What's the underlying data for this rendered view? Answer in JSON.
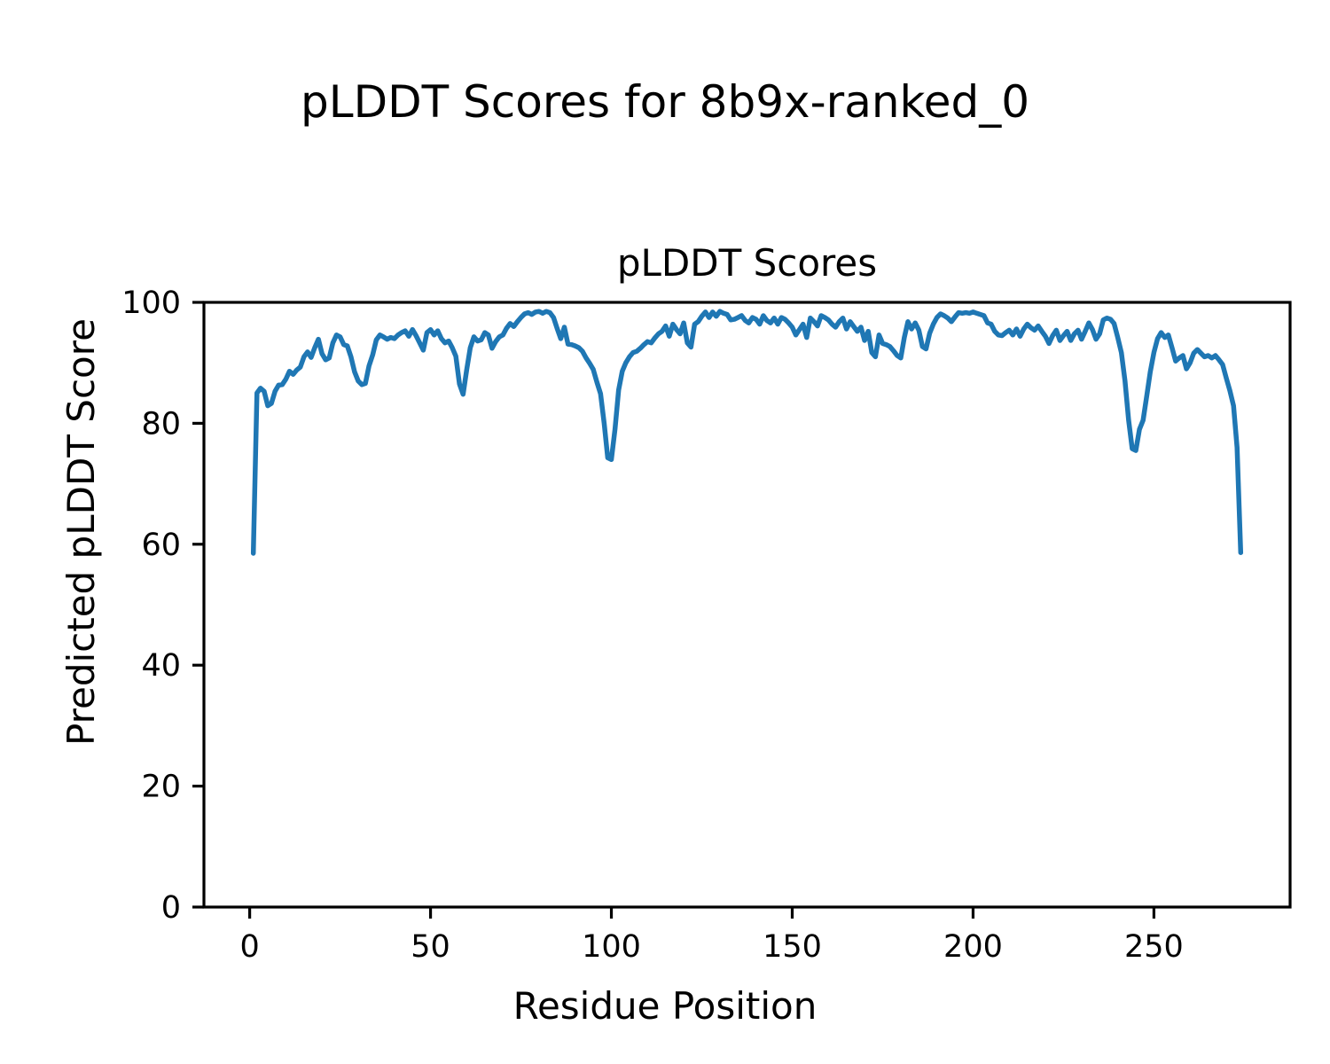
{
  "figure": {
    "title": "pLDDT Scores for 8b9x-ranked_0"
  },
  "chart_data": {
    "type": "line",
    "title": "pLDDT Scores",
    "xlabel": "Residue Position",
    "ylabel": "Predicted pLDDT Score",
    "x_tick_labels": [
      0,
      50,
      100,
      150,
      200,
      250
    ],
    "y_tick_labels": [
      0,
      20,
      40,
      60,
      80,
      100
    ],
    "xlim": [
      -12.65,
      287.65
    ],
    "ylim": [
      0,
      100
    ],
    "grid": false,
    "legend": "none",
    "line_color": "#1f77b4",
    "series": [
      {
        "name": "pLDDT",
        "x_start": 1,
        "x_step": 1,
        "values": [
          58.5,
          85.0,
          85.8,
          85.3,
          82.9,
          83.3,
          85.3,
          86.3,
          86.4,
          87.3,
          88.6,
          88.1,
          88.8,
          89.3,
          91.0,
          91.8,
          90.9,
          92.5,
          93.9,
          91.5,
          90.5,
          90.8,
          93.3,
          94.6,
          94.3,
          93.0,
          92.8,
          91.0,
          88.5,
          87.0,
          86.4,
          86.6,
          89.5,
          91.3,
          93.8,
          94.6,
          94.3,
          93.9,
          94.2,
          94.0,
          94.6,
          95.0,
          95.3,
          94.4,
          95.5,
          94.5,
          93.3,
          92.1,
          95.0,
          95.5,
          94.6,
          95.3,
          94.0,
          93.3,
          93.6,
          92.5,
          91.1,
          86.5,
          84.8,
          88.9,
          92.5,
          94.3,
          93.6,
          93.8,
          95.0,
          94.6,
          92.4,
          93.5,
          94.3,
          94.6,
          95.7,
          96.5,
          96.0,
          96.8,
          97.5,
          98.1,
          98.3,
          98.0,
          98.4,
          98.5,
          98.2,
          98.5,
          98.3,
          97.5,
          95.7,
          94.0,
          95.9,
          93.1,
          93.0,
          92.8,
          92.5,
          91.9,
          90.8,
          89.9,
          88.9,
          86.8,
          84.9,
          80.0,
          74.3,
          74.0,
          79.0,
          85.5,
          88.6,
          90.0,
          91.0,
          91.7,
          91.9,
          92.4,
          93.0,
          93.5,
          93.3,
          94.1,
          94.8,
          95.2,
          96.1,
          94.4,
          96.4,
          95.5,
          94.8,
          96.6,
          93.3,
          92.6,
          96.4,
          96.8,
          97.7,
          98.4,
          97.5,
          98.4,
          97.7,
          98.5,
          98.2,
          98.0,
          97.1,
          97.2,
          97.5,
          97.8,
          97.0,
          96.6,
          97.5,
          97.2,
          96.4,
          97.8,
          97.0,
          96.6,
          97.4,
          96.4,
          97.5,
          97.2,
          96.6,
          95.9,
          94.6,
          95.5,
          96.4,
          94.2,
          97.4,
          96.8,
          96.1,
          97.8,
          97.5,
          97.1,
          96.4,
          95.9,
          96.8,
          97.4,
          95.6,
          96.8,
          96.0,
          95.2,
          95.9,
          93.7,
          95.2,
          91.7,
          91.0,
          94.6,
          93.2,
          93.0,
          92.7,
          92.0,
          91.2,
          90.8,
          94.2,
          96.8,
          95.6,
          96.6,
          95.4,
          92.7,
          92.3,
          94.9,
          96.4,
          97.5,
          98.1,
          97.8,
          97.4,
          96.8,
          97.6,
          98.3,
          98.2,
          98.3,
          98.2,
          98.4,
          98.2,
          98.0,
          97.8,
          96.6,
          96.4,
          95.2,
          94.6,
          94.5,
          95.0,
          95.4,
          94.6,
          95.6,
          94.4,
          95.6,
          96.4,
          95.8,
          95.4,
          96.1,
          95.2,
          94.4,
          93.2,
          94.5,
          95.4,
          93.7,
          94.5,
          95.2,
          93.7,
          94.8,
          95.4,
          93.9,
          95.2,
          96.6,
          95.5,
          93.9,
          94.8,
          97.1,
          97.4,
          97.2,
          96.5,
          94.2,
          91.7,
          87.0,
          80.5,
          75.8,
          75.5,
          79.0,
          80.5,
          84.5,
          88.5,
          91.7,
          94.0,
          95.0,
          94.2,
          94.6,
          92.5,
          90.3,
          90.8,
          91.2,
          89.0,
          90.0,
          91.6,
          92.2,
          91.6,
          91.0,
          91.2,
          90.8,
          91.2,
          90.5,
          89.7,
          87.5,
          85.4,
          82.9,
          76.0,
          58.6
        ]
      }
    ]
  }
}
